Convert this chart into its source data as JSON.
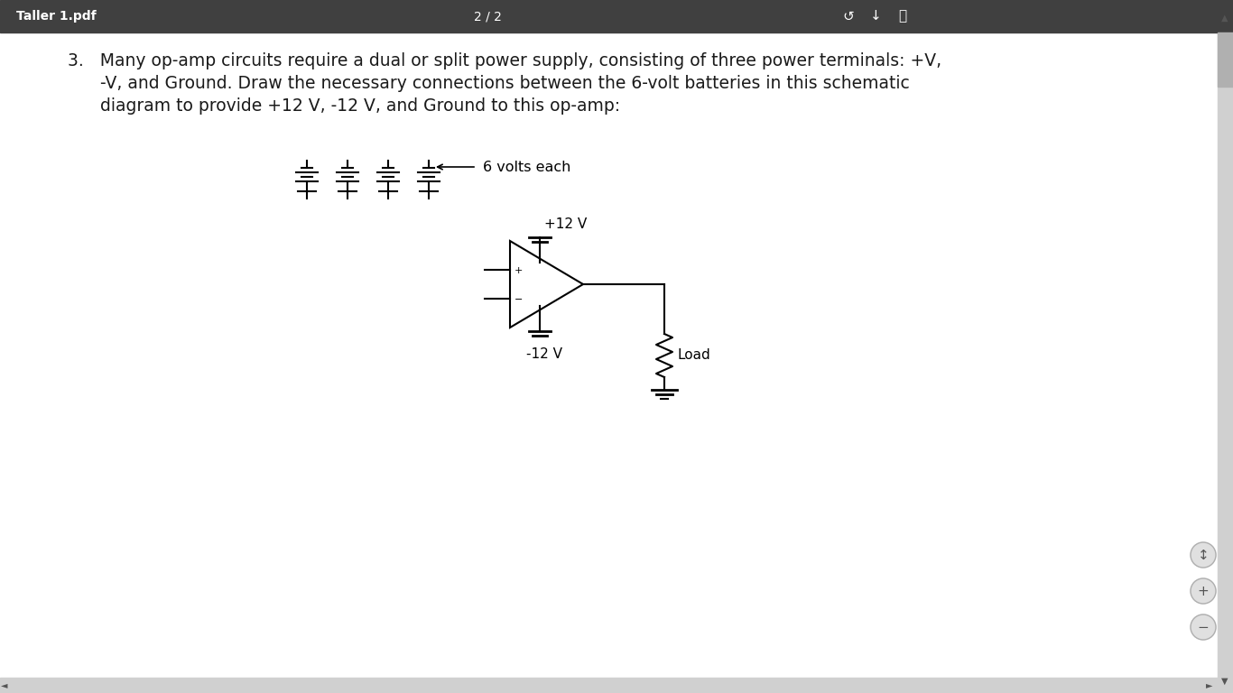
{
  "title_bar_bg": "#404040",
  "title_bar_text": "Taller 1.pdf",
  "title_bar_center": "2 / 2",
  "page_bg": "#ffffff",
  "text_color": "#1a1a1a",
  "font_size_body": 13.5,
  "diagram_note": "6 volts each",
  "label_plus12": "+12 V",
  "label_minus12": "-12 V",
  "label_load": "Load",
  "line_color": "#000000",
  "right_panel_bg": "#f0f0f0",
  "scrollbar_bg": "#c8c8c8",
  "scrollbar_handle": "#a8a8a8",
  "btn_bg": "#e8e8e8",
  "btn_border": "#cccccc"
}
